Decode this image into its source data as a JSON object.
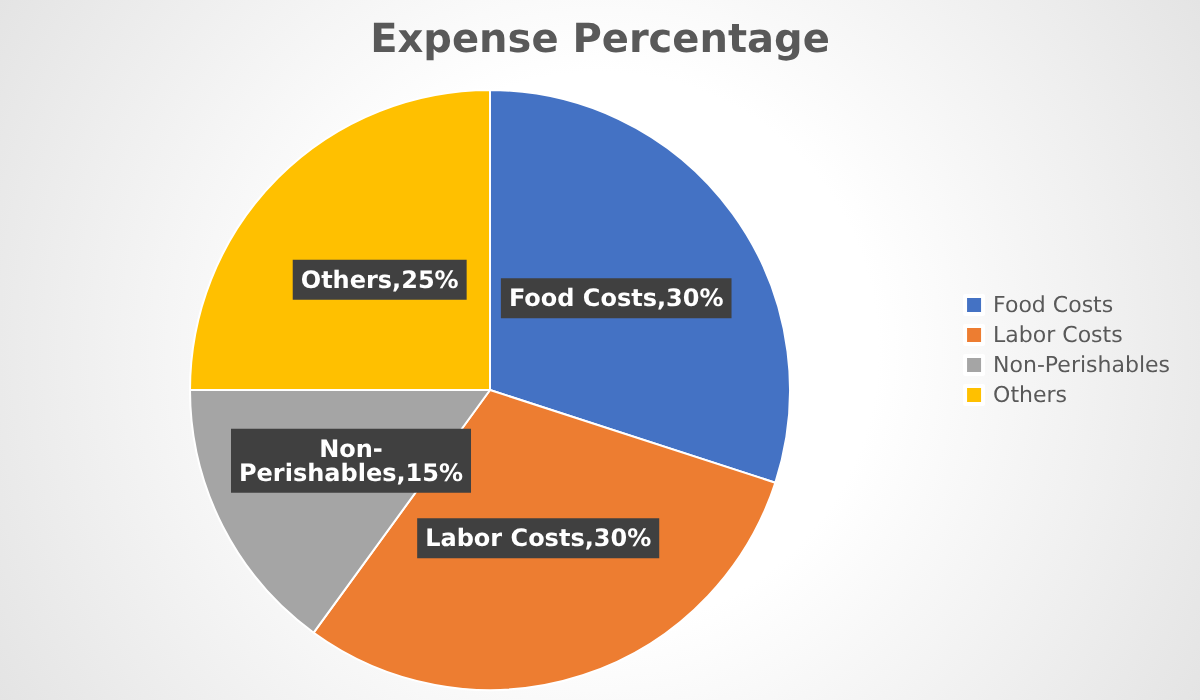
{
  "chart_data": {
    "type": "pie",
    "title": "Expense Percentage",
    "categories": [
      "Food Costs",
      "Labor Costs",
      "Non-Perishables",
      "Others"
    ],
    "values": [
      30,
      30,
      15,
      25
    ],
    "colors": [
      "#4472c4",
      "#ed7d31",
      "#a5a5a5",
      "#ffc000"
    ],
    "value_labels": [
      "Food Costs,30%",
      "Labor Costs,30%",
      "Non-Perishables,15%",
      "Others,25%"
    ],
    "legend": "right"
  }
}
